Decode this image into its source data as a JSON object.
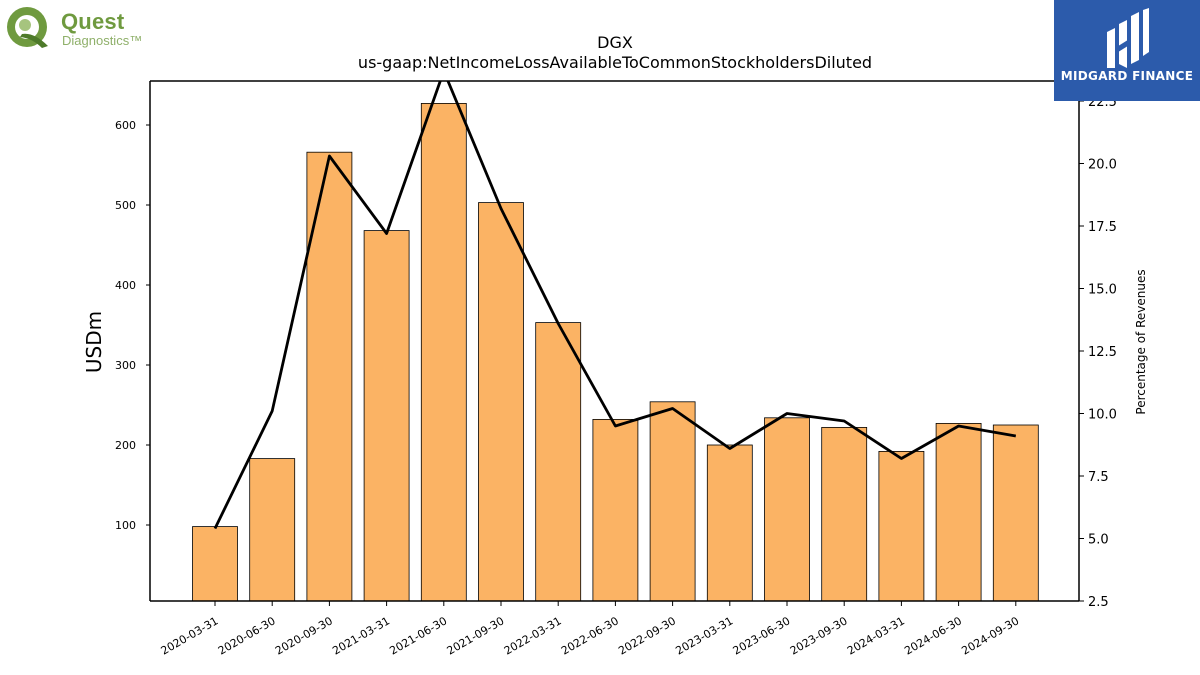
{
  "logos": {
    "left": {
      "line1": "Quest",
      "line2": "Diagnostics™"
    },
    "right": {
      "text": "MIDGARD FINANCE"
    }
  },
  "chart_data": {
    "type": "bar",
    "title": "DGX",
    "subtitle": "us-gaap:NetIncomeLossAvailableToCommonStockholdersDiluted",
    "ylabel": "USDm",
    "y2label": "Percentage of Revenues",
    "ylim": [
      5,
      655
    ],
    "y2lim": [
      2.5,
      23.3
    ],
    "yticks": [
      100,
      200,
      300,
      400,
      500,
      600
    ],
    "y2ticks": [
      2.5,
      5.0,
      7.5,
      10.0,
      12.5,
      15.0,
      17.5,
      20.0,
      22.5
    ],
    "categories": [
      "2020-03-31",
      "2020-06-30",
      "2020-09-30",
      "2021-03-31",
      "2021-06-30",
      "2021-09-30",
      "2022-03-31",
      "2022-06-30",
      "2022-09-30",
      "2023-03-31",
      "2023-06-30",
      "2023-09-30",
      "2024-03-31",
      "2024-06-30",
      "2024-09-30"
    ],
    "series": [
      {
        "kind": "bar",
        "axis": "left",
        "color": "#fbb364",
        "values": [
          98,
          183,
          566,
          468,
          627,
          503,
          353,
          232,
          254,
          200,
          234,
          222,
          192,
          227,
          225
        ]
      },
      {
        "kind": "line",
        "axis": "right",
        "color": "#000000",
        "values": [
          5.4,
          10.1,
          20.3,
          17.2,
          23.7,
          18.2,
          13.6,
          9.5,
          10.2,
          8.6,
          10.0,
          9.7,
          8.2,
          9.5,
          9.1
        ]
      }
    ],
    "grid": false,
    "legend": "none"
  }
}
